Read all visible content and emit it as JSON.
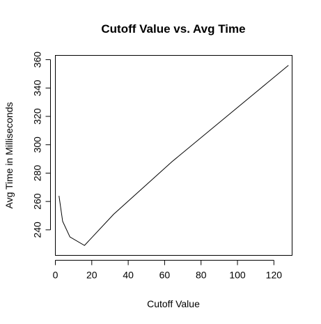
{
  "chart_data": {
    "type": "line",
    "title": "Cutoff Value vs. Avg Time",
    "xlabel": "Cutoff Value",
    "ylabel": "Avg Time in Milliseconds",
    "xlim": [
      0,
      130
    ],
    "ylim": [
      222,
      363
    ],
    "x_ticks": [
      0,
      20,
      40,
      60,
      80,
      100,
      120
    ],
    "y_ticks": [
      240,
      260,
      280,
      300,
      320,
      340,
      360
    ],
    "grid": false,
    "series": [
      {
        "x": [
          2,
          4,
          8,
          16,
          32,
          64,
          128
        ],
        "y": [
          264,
          246,
          235,
          229,
          251,
          288,
          356
        ]
      }
    ]
  }
}
